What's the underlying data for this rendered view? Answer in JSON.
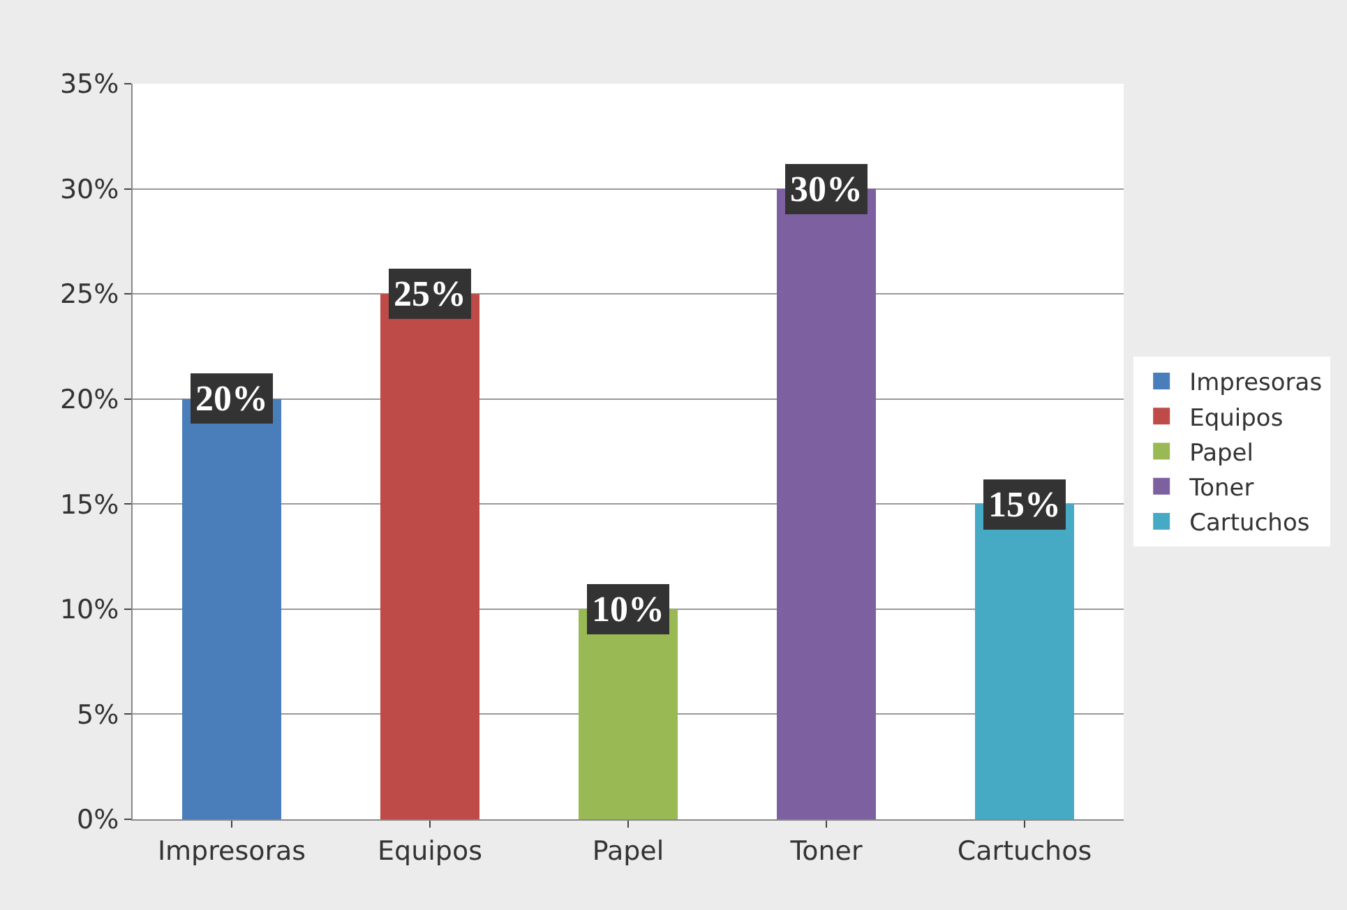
{
  "chart_data": {
    "type": "bar",
    "categories": [
      "Impresoras",
      "Equipos",
      "Papel",
      "Toner",
      "Cartuchos"
    ],
    "series": [
      {
        "name": "Impresoras",
        "color": "#4a7ebb",
        "values": [
          20,
          null,
          null,
          null,
          null
        ],
        "value_labels": [
          "20%",
          null,
          null,
          null,
          null
        ]
      },
      {
        "name": "Equipos",
        "color": "#be4b48",
        "values": [
          null,
          25,
          null,
          null,
          null
        ],
        "value_labels": [
          null,
          "25%",
          null,
          null,
          null
        ]
      },
      {
        "name": "Papel",
        "color": "#98b954",
        "values": [
          null,
          null,
          10,
          null,
          null
        ],
        "value_labels": [
          null,
          null,
          "10%",
          null,
          null
        ]
      },
      {
        "name": "Toner",
        "color": "#7d60a0",
        "values": [
          null,
          null,
          null,
          30,
          null
        ],
        "value_labels": [
          null,
          null,
          null,
          "30%",
          null
        ]
      },
      {
        "name": "Cartuchos",
        "color": "#46aac5",
        "values": [
          null,
          null,
          null,
          null,
          15
        ],
        "value_labels": [
          null,
          null,
          null,
          null,
          "15%"
        ]
      }
    ],
    "ylim": [
      0,
      35
    ],
    "yticks": [
      {
        "value": 0,
        "label": "0%"
      },
      {
        "value": 5,
        "label": "5%"
      },
      {
        "value": 10,
        "label": "10%"
      },
      {
        "value": 15,
        "label": "15%"
      },
      {
        "value": 20,
        "label": "20%"
      },
      {
        "value": 25,
        "label": "25%"
      },
      {
        "value": 30,
        "label": "30%"
      },
      {
        "value": 35,
        "label": "35%"
      }
    ],
    "grid": "y",
    "legend": "right"
  }
}
